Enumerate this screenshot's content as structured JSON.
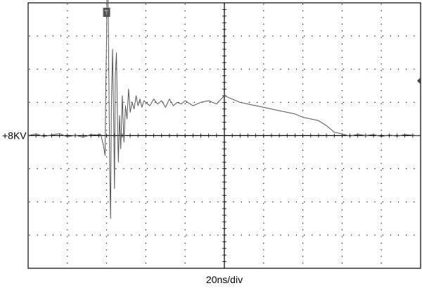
{
  "chart_data": {
    "type": "line",
    "instrument": "oscilloscope",
    "grid": true,
    "x_divisions": 10,
    "y_divisions": 8,
    "xlim_div": [
      0,
      10
    ],
    "ylim_div": [
      -4,
      4
    ],
    "labels": {
      "channel_marker": "+8KV",
      "time_scale": "20ns/div",
      "trigger_marker": "T"
    },
    "trigger_position_div": 2.0,
    "channel_level_div": 0.0,
    "trace_color": "#555555",
    "series": [
      {
        "x": [
          0.0,
          0.2,
          0.4,
          0.6,
          0.8,
          1.0,
          1.2,
          1.4,
          1.6,
          1.75,
          1.85,
          1.92,
          1.96,
          1.98,
          2.0,
          2.02,
          2.04,
          2.06,
          2.08,
          2.1,
          2.12,
          2.15,
          2.18,
          2.2,
          2.22,
          2.25,
          2.28,
          2.3,
          2.33,
          2.36,
          2.4,
          2.44,
          2.48,
          2.52,
          2.56,
          2.6,
          2.65,
          2.7,
          2.75,
          2.8,
          2.85,
          2.9,
          2.95,
          3.0,
          3.1,
          3.2,
          3.3,
          3.4,
          3.5,
          3.6,
          3.7,
          3.8,
          3.9,
          4.0,
          4.2,
          4.4,
          4.6,
          4.8,
          5.0,
          5.2,
          5.4,
          5.6,
          5.8,
          6.0,
          6.2,
          6.4,
          6.6,
          6.8,
          7.0,
          7.2,
          7.4,
          7.6,
          7.8,
          8.0,
          8.2,
          8.4,
          8.6,
          8.8,
          9.0,
          9.2,
          9.4,
          9.6,
          9.8,
          10.0
        ],
        "y": [
          0.0,
          0.05,
          -0.03,
          0.02,
          0.06,
          -0.04,
          0.01,
          -0.05,
          0.03,
          0.02,
          0.04,
          -0.3,
          -0.6,
          1.5,
          3.0,
          5.9,
          4.0,
          1.5,
          -1.2,
          -2.5,
          0.8,
          2.6,
          0.5,
          -1.6,
          1.8,
          2.5,
          0.2,
          -0.8,
          0.6,
          -0.4,
          1.2,
          -0.2,
          0.9,
          0.5,
          1.4,
          0.7,
          1.0,
          0.8,
          1.2,
          0.9,
          1.1,
          0.85,
          1.05,
          1.0,
          0.9,
          1.1,
          0.95,
          1.05,
          0.85,
          1.1,
          0.9,
          1.0,
          0.95,
          1.05,
          0.9,
          1.0,
          1.05,
          0.95,
          1.2,
          1.1,
          1.0,
          0.95,
          0.9,
          0.85,
          0.8,
          0.75,
          0.7,
          0.65,
          0.55,
          0.5,
          0.45,
          0.3,
          0.1,
          0.05,
          -0.02,
          0.04,
          0.0,
          0.03,
          -0.03,
          0.02,
          -0.02,
          0.03,
          0.01,
          -0.01
        ]
      }
    ]
  }
}
